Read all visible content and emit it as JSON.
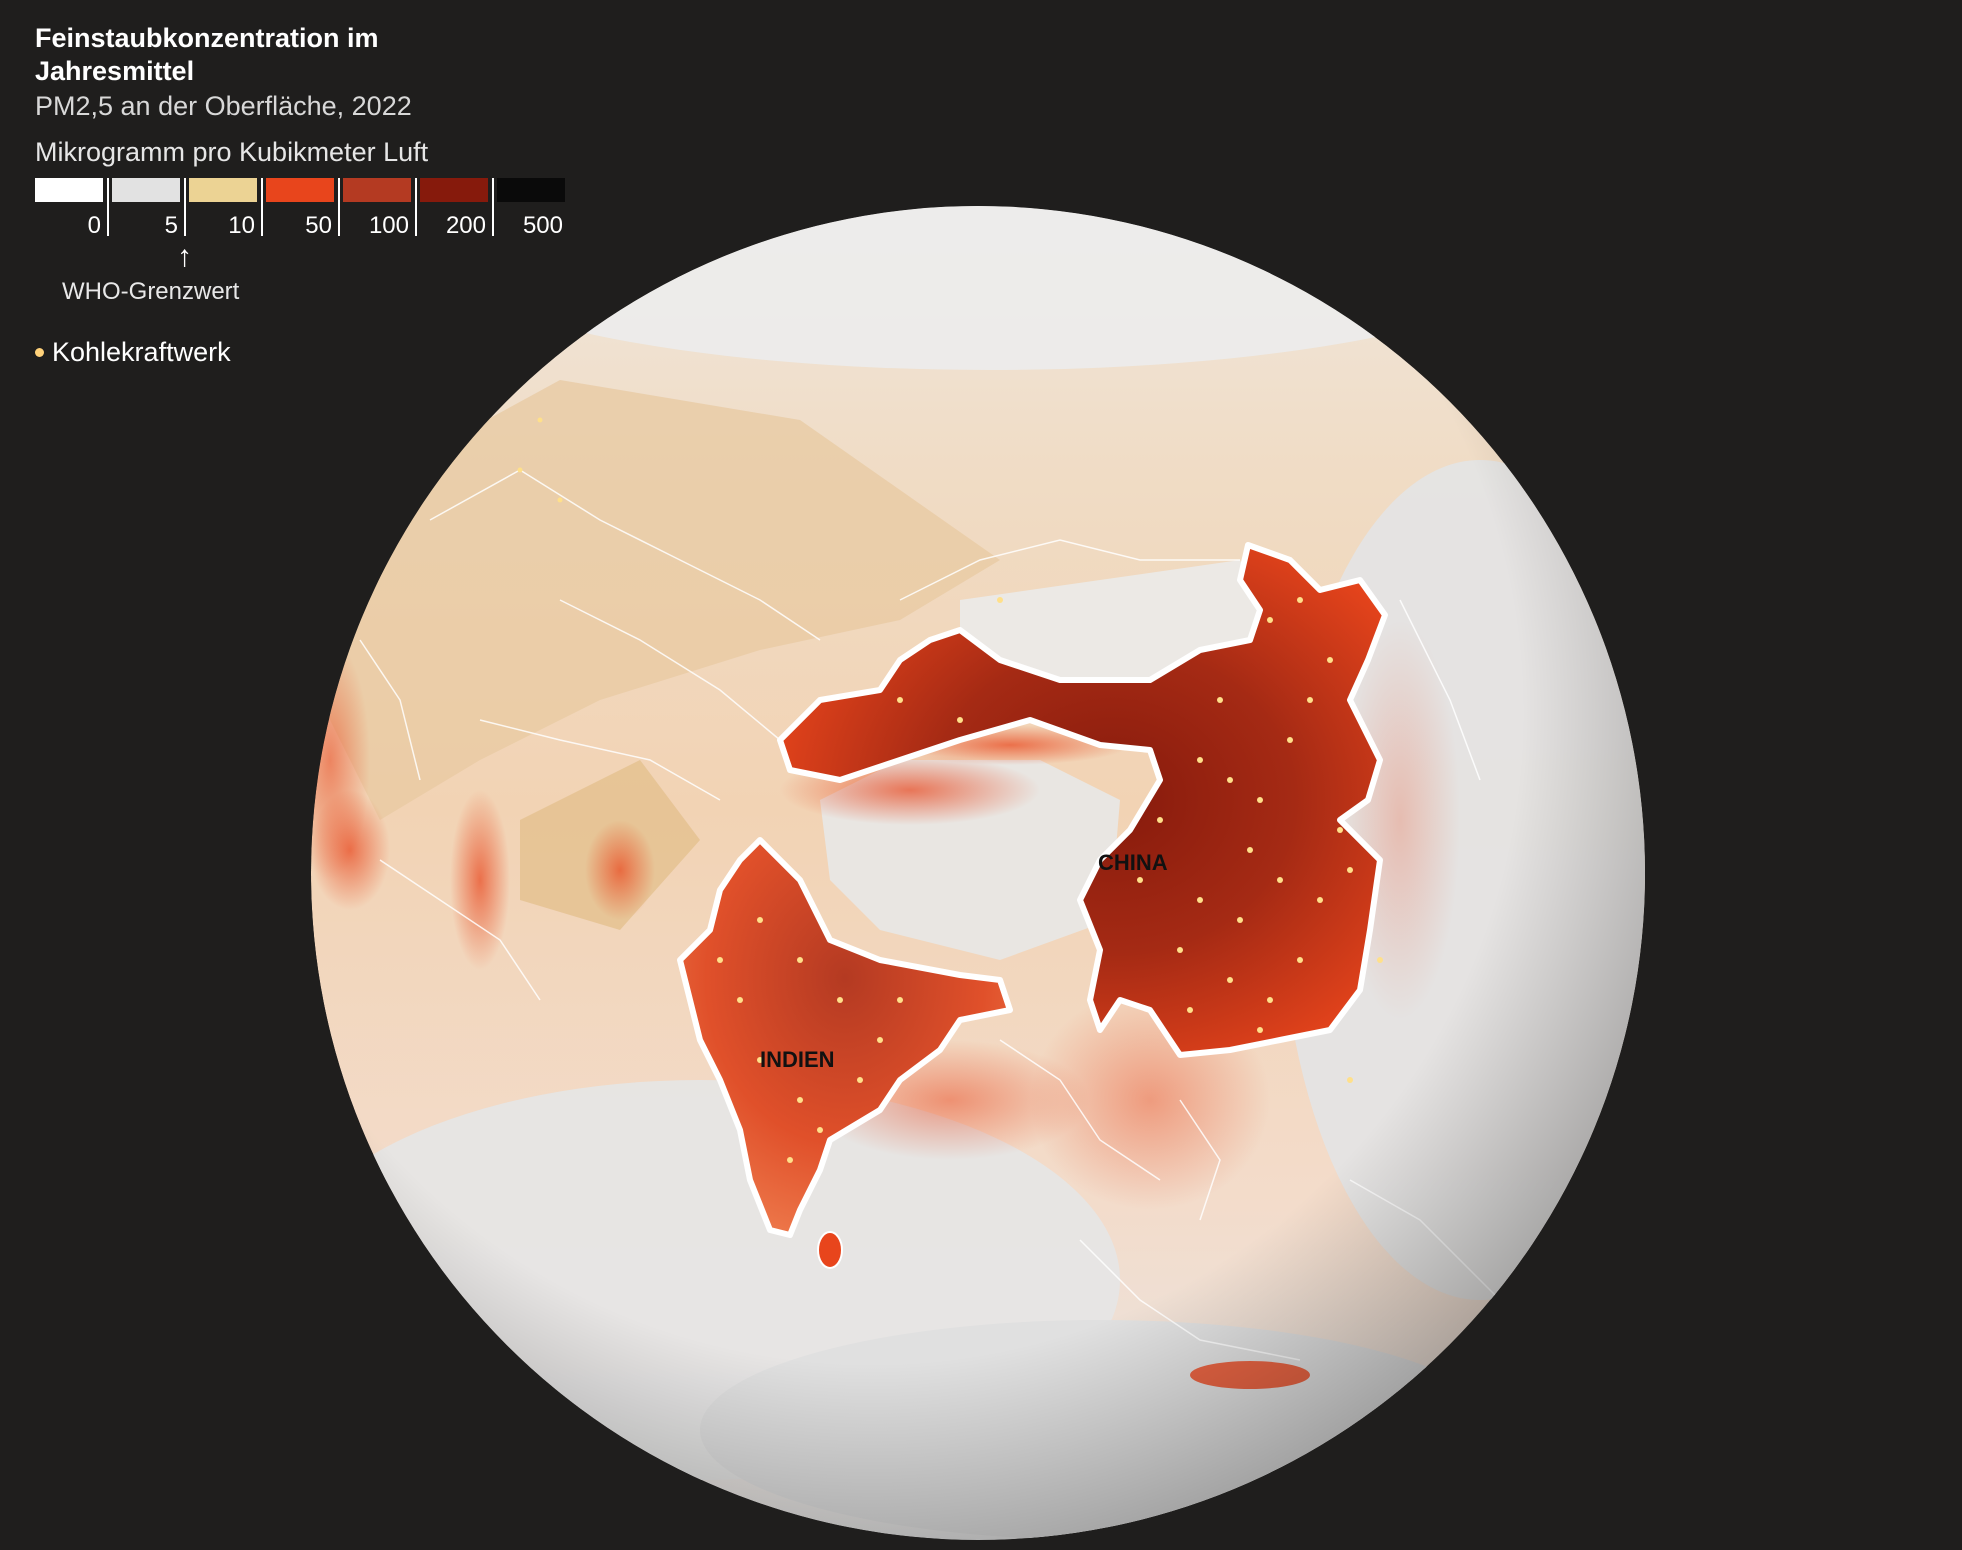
{
  "title": "Feinstaubkonzentration im Jahresmittel",
  "subtitle": "PM2,5 an der Oberfläche, 2022",
  "unit": "Mikrogramm pro Kubikmeter Luft",
  "scale": {
    "colors": [
      "#ffffff",
      "#e2e2e2",
      "#ecd394",
      "#e8451c",
      "#b43a22",
      "#861a0c",
      "#0a0a0a"
    ],
    "breaks": [
      "0",
      "5",
      "10",
      "50",
      "100",
      "200",
      "500"
    ],
    "who_label": "WHO-Grenzwert",
    "who_arrow": "↑"
  },
  "power_plant_label": "Kohlekraftwerk",
  "map": {
    "labels": {
      "china": "CHINA",
      "india": "INDIEN"
    },
    "colors": {
      "background": "#1f1e1d",
      "highlight_border": "#ffffff",
      "power_plant": "#ffe08a"
    }
  }
}
